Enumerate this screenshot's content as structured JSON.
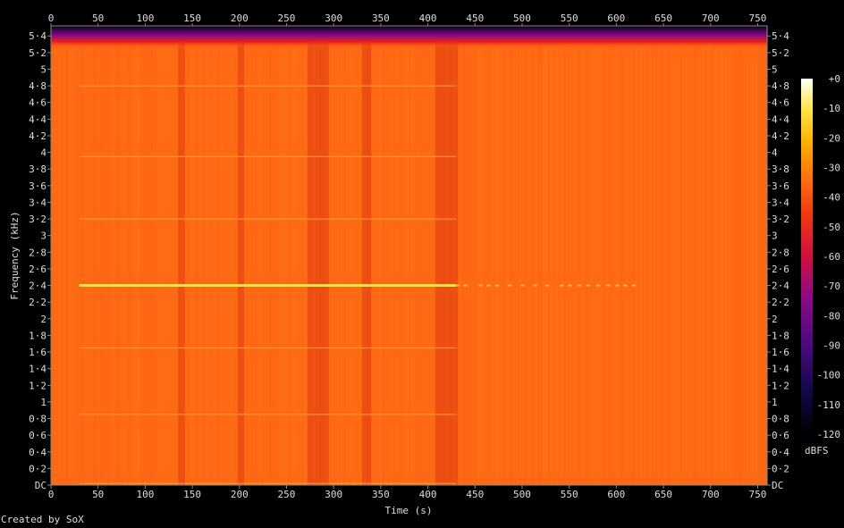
{
  "chart_data": {
    "type": "heatmap",
    "title": "",
    "xlabel": "Time (s)",
    "ylabel": "Frequency (kHz)",
    "xlim": [
      0,
      760
    ],
    "ylim": [
      0,
      5.51
    ],
    "x_ticks": [
      "0",
      "50",
      "100",
      "150",
      "200",
      "250",
      "300",
      "350",
      "400",
      "450",
      "500",
      "550",
      "600",
      "650",
      "700",
      "750"
    ],
    "x_tick_values": [
      0,
      50,
      100,
      150,
      200,
      250,
      300,
      350,
      400,
      450,
      500,
      550,
      600,
      650,
      700,
      750
    ],
    "y_ticks": [
      "DC",
      "0·2",
      "0·4",
      "0·6",
      "0·8",
      "1",
      "1·2",
      "1·4",
      "1·6",
      "1·8",
      "2",
      "2·2",
      "2·4",
      "2·6",
      "2·8",
      "3",
      "3·2",
      "3·4",
      "3·6",
      "3·8",
      "4",
      "4·2",
      "4·4",
      "4·6",
      "4·8",
      "5",
      "5·2",
      "5·4"
    ],
    "y_tick_values": [
      0,
      0.2,
      0.4,
      0.6,
      0.8,
      1,
      1.2,
      1.4,
      1.6,
      1.8,
      2,
      2.2,
      2.4,
      2.6,
      2.8,
      3,
      3.2,
      3.4,
      3.6,
      3.8,
      4,
      4.2,
      4.4,
      4.6,
      4.8,
      5,
      5.2,
      5.4
    ],
    "colorbar": {
      "label": "dBFS",
      "ticks": [
        "+0",
        "-10",
        "-20",
        "-30",
        "-40",
        "-50",
        "-60",
        "-70",
        "-80",
        "-90",
        "-100",
        "-110",
        "-120"
      ],
      "range": [
        -120,
        0
      ],
      "colors": [
        "#000000",
        "#1a0a5a",
        "#5a0a8a",
        "#9a0a7a",
        "#d0103a",
        "#f04010",
        "#ff7010",
        "#ffb000",
        "#ffe040",
        "#ffffe0"
      ]
    },
    "background_level_dbfs": -35,
    "tones": [
      {
        "freq_khz": 2.4,
        "t_start": 30,
        "t_end": 430,
        "level_dbfs": -15,
        "continues_intermittently_to": 620
      },
      {
        "freq_khz": 4.8,
        "t_start": 30,
        "t_end": 430,
        "level_dbfs": -30
      },
      {
        "freq_khz": 3.95,
        "t_start": 30,
        "t_end": 430,
        "level_dbfs": -31
      },
      {
        "freq_khz": 3.2,
        "t_start": 30,
        "t_end": 430,
        "level_dbfs": -30
      },
      {
        "freq_khz": 1.65,
        "t_start": 30,
        "t_end": 430,
        "level_dbfs": -31
      },
      {
        "freq_khz": 0.85,
        "t_start": 30,
        "t_end": 430,
        "level_dbfs": -32
      },
      {
        "freq_khz": 0.02,
        "t_start": 30,
        "t_end": 430,
        "level_dbfs": -25
      }
    ],
    "darker_time_bands_s": [
      [
        135,
        142
      ],
      [
        198,
        205
      ],
      [
        272,
        295
      ],
      [
        330,
        340
      ],
      [
        408,
        432
      ]
    ],
    "rolloff_above_khz": 5.25
  },
  "footer": {
    "credit": "Created by SoX"
  }
}
